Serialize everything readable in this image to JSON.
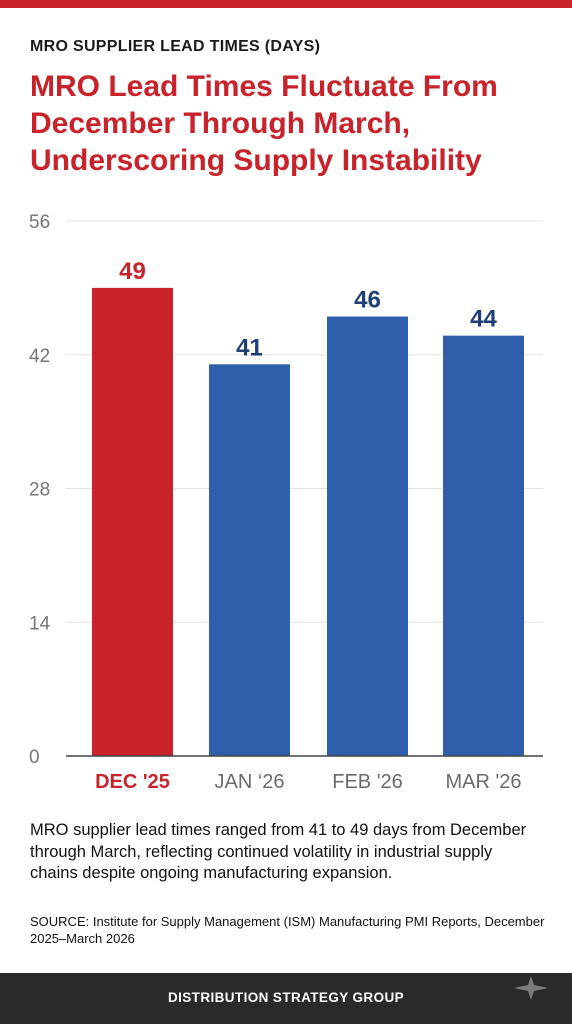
{
  "header": {
    "eyebrow": "MRO SUPPLIER LEAD TIMES (DAYS)",
    "headline": "MRO Lead Times Fluctuate From December Through March, Underscoring Supply Instability"
  },
  "chart_data": {
    "type": "bar",
    "categories": [
      "DEC '25",
      "JAN ‘26",
      "FEB '26",
      "MAR '26"
    ],
    "values": [
      49,
      41,
      46,
      44
    ],
    "data_labels": [
      "49",
      "41",
      "46",
      "44"
    ],
    "y_ticks": [
      0,
      14,
      28,
      42,
      56
    ],
    "ylim": [
      0,
      56
    ],
    "grid": true,
    "highlight_index": 0,
    "colors": {
      "highlight": "#c8232b",
      "bar": "#2f5faa",
      "highlight_label": "#c8232b",
      "label": "#1f3f78",
      "category": "#6b6b6b",
      "tick": "#777777",
      "grid": "#e2e2e2",
      "axis": "#444444"
    }
  },
  "caption": "MRO supplier lead times ranged from 41 to 49 days from December through March, reflecting continued volatility in industrial supply chains despite ongoing manufacturing expansion.",
  "source": "SOURCE: Institute for Supply Management (ISM) Manufacturing PMI Reports, December 2025–March 2026",
  "footer": {
    "brand": "DISTRIBUTION STRATEGY GROUP",
    "icon": "sparkle-icon"
  }
}
